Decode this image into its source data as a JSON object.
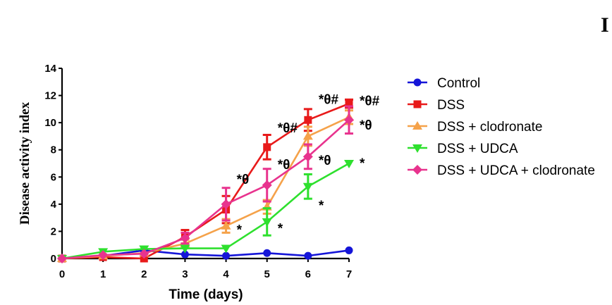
{
  "panel_letter": "I",
  "chart_data": {
    "type": "line",
    "title": "",
    "xlabel": "Time (days)",
    "ylabel": "Disease activity index",
    "x": [
      0,
      1,
      2,
      3,
      4,
      5,
      6,
      7
    ],
    "xticks": [
      "0",
      "1",
      "2",
      "3",
      "4",
      "5",
      "6",
      "7"
    ],
    "yticks": [
      "0",
      "2",
      "4",
      "6",
      "8",
      "10",
      "12",
      "14"
    ],
    "xlim": [
      0,
      7
    ],
    "ylim": [
      0,
      14
    ],
    "grid": false,
    "legend_position": "right",
    "series": [
      {
        "name": "Control",
        "color": "#1515d8",
        "marker": "circle",
        "values": [
          0,
          0.2,
          0.6,
          0.3,
          0.2,
          0.4,
          0.2,
          0.6
        ],
        "errors": [
          0,
          0,
          0,
          0,
          0,
          0,
          0,
          0
        ]
      },
      {
        "name": "DSS",
        "color": "#e81a1a",
        "marker": "square",
        "values": [
          0,
          0.1,
          0,
          1.6,
          3.6,
          8.2,
          10.2,
          11.4
        ],
        "errors": [
          0,
          0,
          0,
          0.5,
          1.0,
          0.9,
          0.8,
          0.3
        ]
      },
      {
        "name": "DSS + clodronate",
        "color": "#f5a24a",
        "marker": "triangle-up",
        "values": [
          0,
          0.2,
          0.4,
          1.1,
          2.4,
          3.8,
          9.0,
          10.4
        ],
        "errors": [
          0,
          0,
          0,
          0.3,
          0.5,
          0.5,
          0.7,
          0.5
        ]
      },
      {
        "name": "DSS + UDCA",
        "color": "#2ee02e",
        "marker": "triangle-down",
        "values": [
          0,
          0.5,
          0.7,
          0.75,
          0.75,
          2.7,
          5.3,
          7.0
        ],
        "errors": [
          0,
          0,
          0,
          0,
          0,
          1.0,
          0.9,
          0
        ]
      },
      {
        "name": "DSS + UDCA + clodronate",
        "color": "#e8338e",
        "marker": "diamond",
        "values": [
          0,
          0.25,
          0.35,
          1.5,
          4.0,
          5.4,
          7.5,
          10.2
        ],
        "errors": [
          0,
          0,
          0,
          0.4,
          1.2,
          1.2,
          0.9,
          1.0
        ]
      }
    ],
    "annotations": [
      {
        "text": "*θ",
        "x": 4,
        "y": 5.8
      },
      {
        "text": "*",
        "x": 4,
        "y": 2.1
      },
      {
        "text": "*θ#",
        "x": 5,
        "y": 9.6
      },
      {
        "text": "*θ",
        "x": 5,
        "y": 6.9
      },
      {
        "text": "*",
        "x": 5,
        "y": 2.2
      },
      {
        "text": "*θ#",
        "x": 6,
        "y": 11.7
      },
      {
        "text": "*θ",
        "x": 6,
        "y": 7.2
      },
      {
        "text": "*",
        "x": 6,
        "y": 3.9
      },
      {
        "text": "*θ#",
        "x": 7,
        "y": 11.6
      },
      {
        "text": "*θ",
        "x": 7,
        "y": 9.8
      },
      {
        "text": "*",
        "x": 7,
        "y": 7.0
      }
    ]
  }
}
